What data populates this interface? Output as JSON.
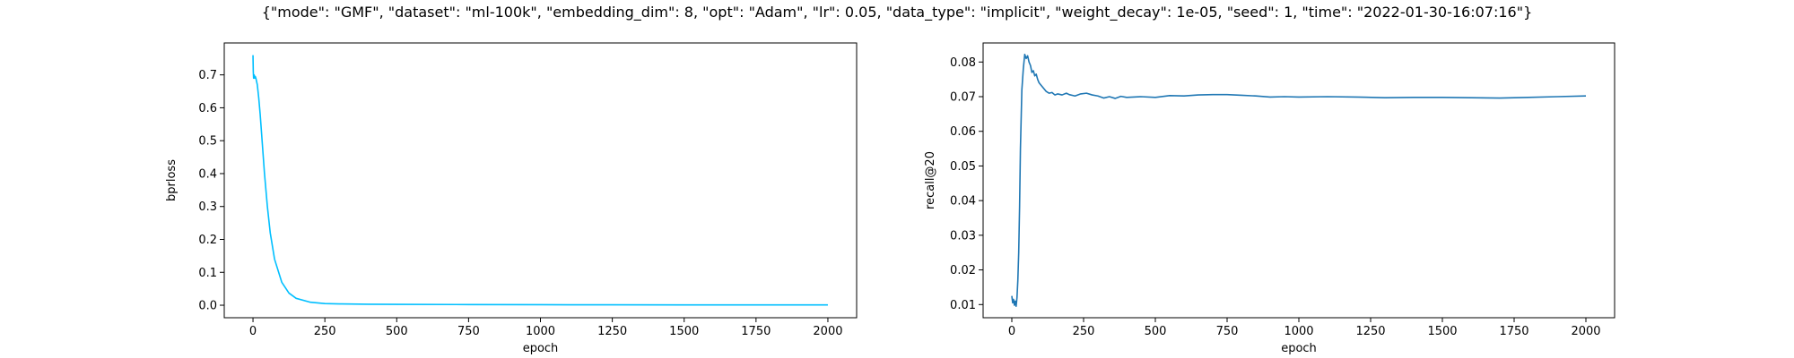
{
  "figure": {
    "title": "{\"mode\": \"GMF\", \"dataset\": \"ml-100k\", \"embedding_dim\": 8, \"opt\": \"Adam\", \"lr\": 0.05, \"data_type\": \"implicit\", \"weight_decay\": 1e-05, \"seed\": 1, \"time\": \"2022-01-30-16:07:16\"}"
  },
  "chart_data": [
    {
      "type": "line",
      "title": "",
      "xlabel": "epoch",
      "ylabel": "bprloss",
      "xlim": [
        -100,
        2100
      ],
      "ylim": [
        -0.038,
        0.797
      ],
      "xticks": [
        0,
        250,
        500,
        750,
        1000,
        1250,
        1500,
        1750,
        2000
      ],
      "yticks": [
        0.0,
        0.1,
        0.2,
        0.3,
        0.4,
        0.5,
        0.6,
        0.7
      ],
      "ytick_labels": [
        "0.0",
        "0.1",
        "0.2",
        "0.3",
        "0.4",
        "0.5",
        "0.6",
        "0.7"
      ],
      "grid": false,
      "color": "#00bfff",
      "series": [
        {
          "x": [
            0,
            1,
            2,
            4,
            6,
            8,
            10,
            15,
            20,
            25,
            30,
            40,
            50,
            60,
            75,
            100,
            125,
            150,
            200,
            250,
            300,
            400,
            500,
            750,
            1000,
            1250,
            1500,
            1750,
            2000
          ],
          "y": [
            0.76,
            0.71,
            0.69,
            0.7,
            0.69,
            0.695,
            0.69,
            0.67,
            0.63,
            0.58,
            0.52,
            0.4,
            0.3,
            0.22,
            0.14,
            0.07,
            0.037,
            0.021,
            0.009,
            0.005,
            0.004,
            0.003,
            0.0025,
            0.002,
            0.0015,
            0.0012,
            0.001,
            0.0009,
            0.0008
          ]
        }
      ]
    },
    {
      "type": "line",
      "title": "",
      "xlabel": "epoch",
      "ylabel": "recall@20",
      "xlim": [
        -100,
        2100
      ],
      "ylim": [
        0.0062,
        0.0855
      ],
      "xticks": [
        0,
        250,
        500,
        750,
        1000,
        1250,
        1500,
        1750,
        2000
      ],
      "yticks": [
        0.01,
        0.02,
        0.03,
        0.04,
        0.05,
        0.06,
        0.07,
        0.08
      ],
      "ytick_labels": [
        "0.01",
        "0.02",
        "0.03",
        "0.04",
        "0.05",
        "0.06",
        "0.07",
        "0.08"
      ],
      "grid": false,
      "color": "#1f77b4",
      "series": [
        {
          "x": [
            0,
            3,
            6,
            9,
            12,
            15,
            18,
            21,
            24,
            27,
            30,
            35,
            40,
            45,
            50,
            55,
            60,
            65,
            70,
            75,
            80,
            85,
            90,
            95,
            100,
            110,
            120,
            130,
            140,
            150,
            160,
            175,
            190,
            200,
            220,
            240,
            260,
            280,
            300,
            320,
            340,
            360,
            380,
            400,
            450,
            500,
            550,
            600,
            650,
            700,
            750,
            800,
            850,
            900,
            950,
            1000,
            1100,
            1200,
            1300,
            1400,
            1500,
            1600,
            1700,
            1800,
            1900,
            2000
          ],
          "y": [
            0.0125,
            0.0105,
            0.0115,
            0.0098,
            0.011,
            0.0095,
            0.012,
            0.017,
            0.025,
            0.038,
            0.055,
            0.072,
            0.078,
            0.0822,
            0.081,
            0.0818,
            0.08,
            0.079,
            0.077,
            0.0775,
            0.076,
            0.0765,
            0.075,
            0.074,
            0.0735,
            0.0725,
            0.0715,
            0.071,
            0.0712,
            0.0705,
            0.0708,
            0.0705,
            0.071,
            0.0706,
            0.0702,
            0.0708,
            0.071,
            0.0705,
            0.0702,
            0.0696,
            0.07,
            0.0695,
            0.0701,
            0.0698,
            0.07,
            0.0698,
            0.0703,
            0.0702,
            0.0705,
            0.0706,
            0.0706,
            0.0704,
            0.0702,
            0.0699,
            0.07,
            0.0699,
            0.07,
            0.0699,
            0.0697,
            0.0698,
            0.0698,
            0.0697,
            0.0696,
            0.0698,
            0.07,
            0.0702
          ]
        }
      ]
    }
  ]
}
